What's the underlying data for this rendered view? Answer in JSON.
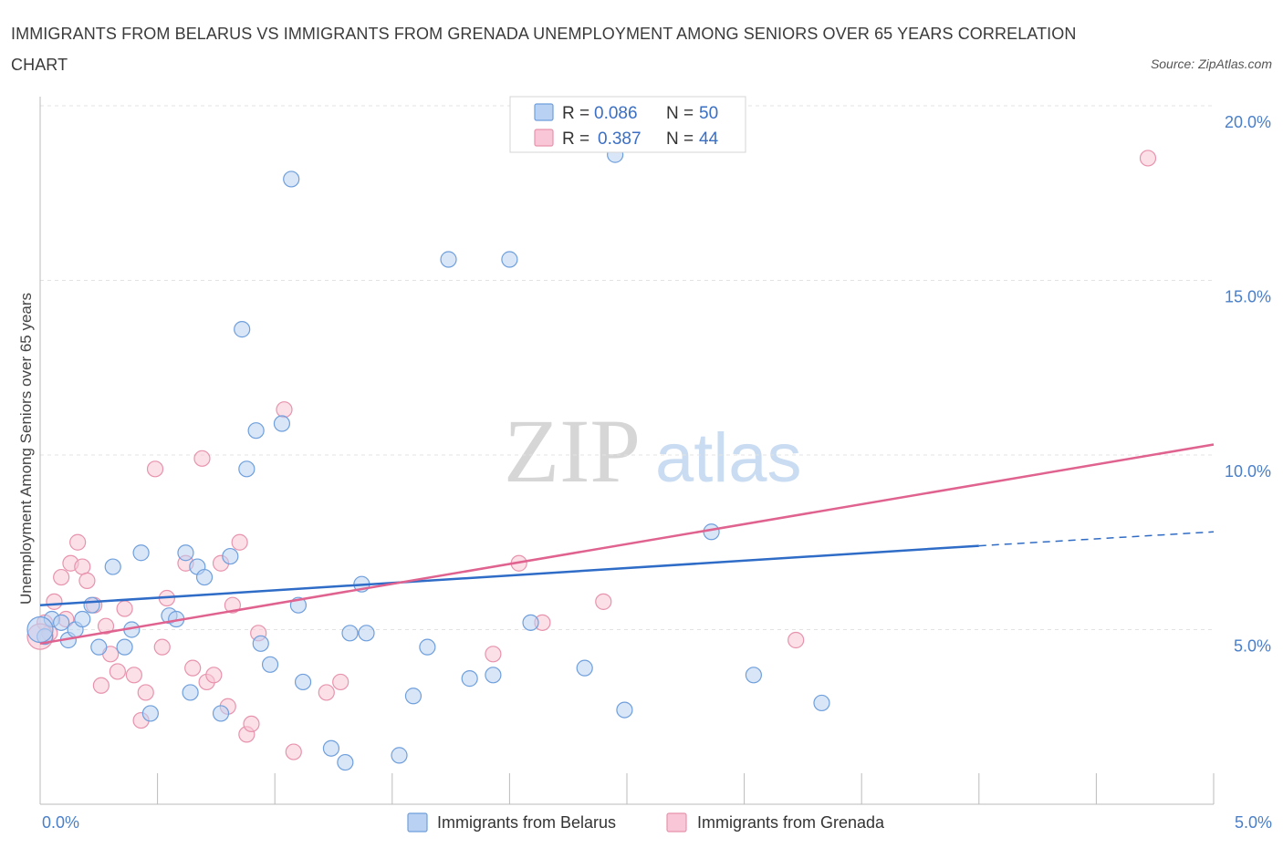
{
  "title": "IMMIGRANTS FROM BELARUS VS IMMIGRANTS FROM GRENADA UNEMPLOYMENT AMONG SENIORS OVER 65 YEARS CORRELATION CHART",
  "source": "Source: ZipAtlas.com",
  "watermark": {
    "zip": "ZIP",
    "atlas": "atlas"
  },
  "legend": {
    "rows": [
      {
        "r_label": "R =",
        "r_value": "0.086",
        "n_label": "N =",
        "n_value": "50"
      },
      {
        "r_label": "R =",
        "r_value": "0.387",
        "n_label": "N =",
        "n_value": "44"
      }
    ]
  },
  "chart_data": {
    "type": "scatter",
    "title": "IMMIGRANTS FROM BELARUS VS IMMIGRANTS FROM GRENADA UNEMPLOYMENT AMONG SENIORS OVER 65 YEARS CORRELATION CHART",
    "xlabel": "",
    "ylabel": "Unemployment Among Seniors over 65 years",
    "xlim": [
      0,
      5
    ],
    "ylim": [
      0,
      20
    ],
    "x_tick_labels": [
      "0.0%",
      "5.0%"
    ],
    "y_ticks": [
      5,
      10,
      15,
      20
    ],
    "y_tick_labels": [
      "5.0%",
      "10.0%",
      "15.0%",
      "20.0%"
    ],
    "colors": {
      "belarus_fill": "#b9d2f3",
      "belarus_stroke": "#6f9fdc",
      "belarus_line": "#2f6cc7",
      "grenada_fill": "#f8c6d6",
      "grenada_stroke": "#e893ad",
      "grenada_line": "#e0628f"
    },
    "series": [
      {
        "name": "Immigrants from Belarus",
        "R": 0.086,
        "N": 50,
        "trend": {
          "x0": 0,
          "y0": 5.7,
          "x1": 4,
          "y1": 7.4,
          "dash_to_x": 5,
          "dash_to_y": 7.8
        },
        "points": [
          [
            0.02,
            4.8
          ],
          [
            0.05,
            5.3
          ],
          [
            0.09,
            5.2
          ],
          [
            0.12,
            4.7
          ],
          [
            0.15,
            5.0
          ],
          [
            0.18,
            5.3
          ],
          [
            0.22,
            5.7
          ],
          [
            0.25,
            4.5
          ],
          [
            0.31,
            6.8
          ],
          [
            0.36,
            4.5
          ],
          [
            0.39,
            5.0
          ],
          [
            0.47,
            2.6
          ],
          [
            0.43,
            7.2
          ],
          [
            0.55,
            5.4
          ],
          [
            0.58,
            5.3
          ],
          [
            0.62,
            7.2
          ],
          [
            0.64,
            3.2
          ],
          [
            0.67,
            6.8
          ],
          [
            0.7,
            6.5
          ],
          [
            0.77,
            2.6
          ],
          [
            0.81,
            7.1
          ],
          [
            0.86,
            13.6
          ],
          [
            0.88,
            9.6
          ],
          [
            0.92,
            10.7
          ],
          [
            0.94,
            4.6
          ],
          [
            0.98,
            4.0
          ],
          [
            1.03,
            10.9
          ],
          [
            1.07,
            17.9
          ],
          [
            1.1,
            5.7
          ],
          [
            1.12,
            3.5
          ],
          [
            1.24,
            1.6
          ],
          [
            1.3,
            1.2
          ],
          [
            1.32,
            4.9
          ],
          [
            1.37,
            6.3
          ],
          [
            1.39,
            4.9
          ],
          [
            1.53,
            1.4
          ],
          [
            1.59,
            3.1
          ],
          [
            1.65,
            4.5
          ],
          [
            1.74,
            15.6
          ],
          [
            1.83,
            3.6
          ],
          [
            1.93,
            3.7
          ],
          [
            2.0,
            15.6
          ],
          [
            2.09,
            5.2
          ],
          [
            2.32,
            3.9
          ],
          [
            2.45,
            18.6
          ],
          [
            2.49,
            2.7
          ],
          [
            2.86,
            7.8
          ],
          [
            3.04,
            3.7
          ],
          [
            3.33,
            2.9
          ],
          [
            0.0,
            5.0
          ]
        ]
      },
      {
        "name": "Immigrants from Grenada",
        "R": 0.387,
        "N": 44,
        "trend": {
          "x0": 0,
          "y0": 4.6,
          "x1": 5,
          "y1": 10.3
        },
        "points": [
          [
            0.02,
            5.2
          ],
          [
            0.04,
            4.9
          ],
          [
            0.06,
            5.8
          ],
          [
            0.09,
            6.5
          ],
          [
            0.11,
            5.3
          ],
          [
            0.13,
            6.9
          ],
          [
            0.16,
            7.5
          ],
          [
            0.18,
            6.8
          ],
          [
            0.2,
            6.4
          ],
          [
            0.23,
            5.7
          ],
          [
            0.26,
            3.4
          ],
          [
            0.28,
            5.1
          ],
          [
            0.3,
            4.3
          ],
          [
            0.33,
            3.8
          ],
          [
            0.36,
            5.6
          ],
          [
            0.4,
            3.7
          ],
          [
            0.43,
            2.4
          ],
          [
            0.45,
            3.2
          ],
          [
            0.49,
            9.6
          ],
          [
            0.52,
            4.5
          ],
          [
            0.54,
            5.9
          ],
          [
            0.62,
            6.9
          ],
          [
            0.65,
            3.9
          ],
          [
            0.69,
            9.9
          ],
          [
            0.71,
            3.5
          ],
          [
            0.74,
            3.7
          ],
          [
            0.77,
            6.9
          ],
          [
            0.8,
            2.8
          ],
          [
            0.82,
            5.7
          ],
          [
            0.85,
            7.5
          ],
          [
            0.88,
            2.0
          ],
          [
            0.9,
            2.3
          ],
          [
            0.93,
            4.9
          ],
          [
            1.04,
            11.3
          ],
          [
            1.08,
            1.5
          ],
          [
            1.22,
            3.2
          ],
          [
            1.28,
            3.5
          ],
          [
            1.93,
            4.3
          ],
          [
            2.04,
            6.9
          ],
          [
            2.14,
            5.2
          ],
          [
            2.4,
            5.8
          ],
          [
            3.22,
            4.7
          ],
          [
            4.72,
            18.5
          ],
          [
            0.0,
            4.8
          ]
        ]
      }
    ]
  },
  "bottom_legend": {
    "items": [
      "Immigrants from Belarus",
      "Immigrants from Grenada"
    ]
  }
}
